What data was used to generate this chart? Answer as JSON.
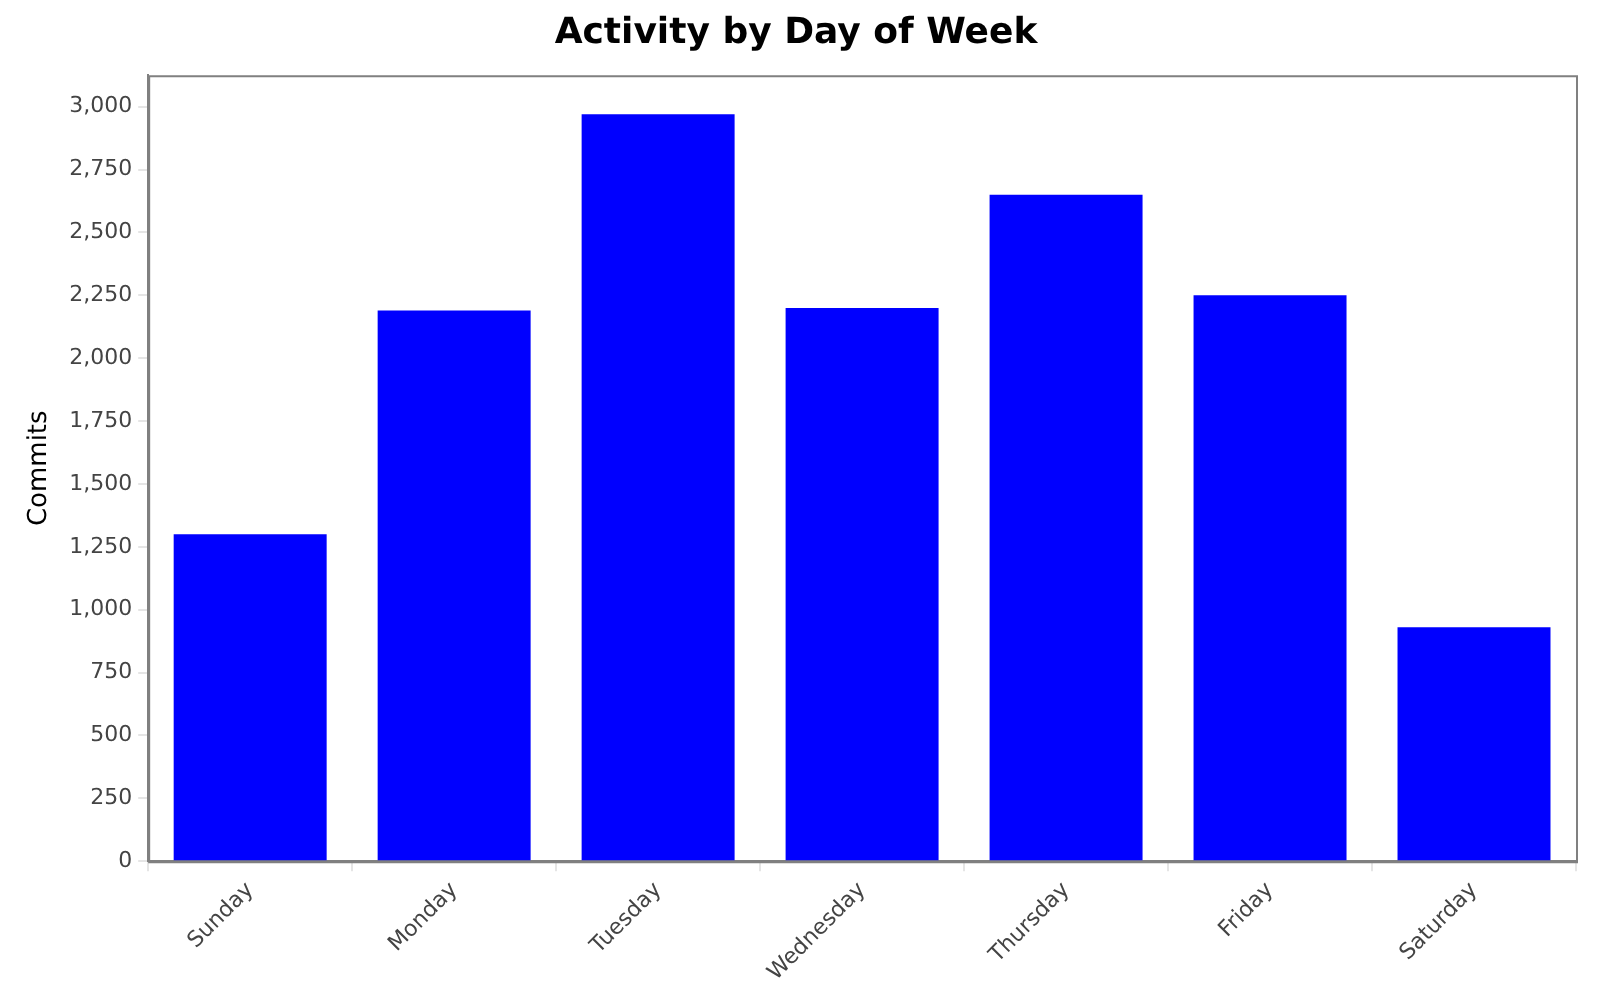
{
  "chart_data": {
    "type": "bar",
    "title": "Activity by Day of Week",
    "ylabel": "Commits",
    "categories": [
      "Sunday",
      "Monday",
      "Tuesday",
      "Wednesday",
      "Thursday",
      "Friday",
      "Saturday"
    ],
    "values": [
      1300,
      2190,
      2970,
      2200,
      2650,
      2250,
      930
    ],
    "color": "#0000ff",
    "ylim": [
      0,
      3125
    ],
    "yticks": [
      {
        "value": 0,
        "label": "0"
      },
      {
        "value": 250,
        "label": "250"
      },
      {
        "value": 500,
        "label": "500"
      },
      {
        "value": 750,
        "label": "750"
      },
      {
        "value": 1000,
        "label": "1,000"
      },
      {
        "value": 1250,
        "label": "1,250"
      },
      {
        "value": 1500,
        "label": "1,500"
      },
      {
        "value": 1750,
        "label": "1,750"
      },
      {
        "value": 2000,
        "label": "2,000"
      },
      {
        "value": 2250,
        "label": "2,250"
      },
      {
        "value": 2500,
        "label": "2,500"
      },
      {
        "value": 2750,
        "label": "2,750"
      },
      {
        "value": 3000,
        "label": "3,000"
      }
    ],
    "grid": false,
    "legend": false
  }
}
